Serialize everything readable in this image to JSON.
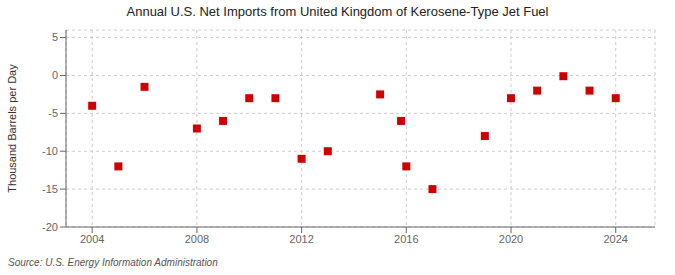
{
  "chart_data": {
    "type": "scatter",
    "title": "Annual U.S. Net Imports from United Kingdom of Kerosene-Type Jet Fuel",
    "y_label": "Thousand Barrels per Day",
    "annotations": [
      "Source: U.S. Energy Information Administration"
    ],
    "x": [
      2004,
      2005,
      2006,
      2008,
      2009,
      2010,
      2011,
      2012,
      2013,
      2015,
      2015.8,
      2016,
      2017,
      2019,
      2020,
      2021,
      2022,
      2023,
      2024
    ],
    "values": [
      -4.0,
      -12.0,
      -1.5,
      -7.0,
      -6.0,
      -3.0,
      -3.0,
      -11.0,
      -10.0,
      -2.5,
      -6.0,
      -12.0,
      -15.0,
      -8.0,
      -3.0,
      -2.0,
      -0.1,
      -2.0,
      -3.0
    ],
    "color": "#cc0000",
    "marker": "square",
    "xlim": [
      2003,
      2025.5
    ],
    "ylim": [
      -20,
      6
    ],
    "xticks": [
      2004,
      2008,
      2012,
      2016,
      2020,
      2024
    ],
    "yticks": [
      -20,
      -15,
      -10,
      -5,
      0,
      5
    ],
    "grid": true
  }
}
